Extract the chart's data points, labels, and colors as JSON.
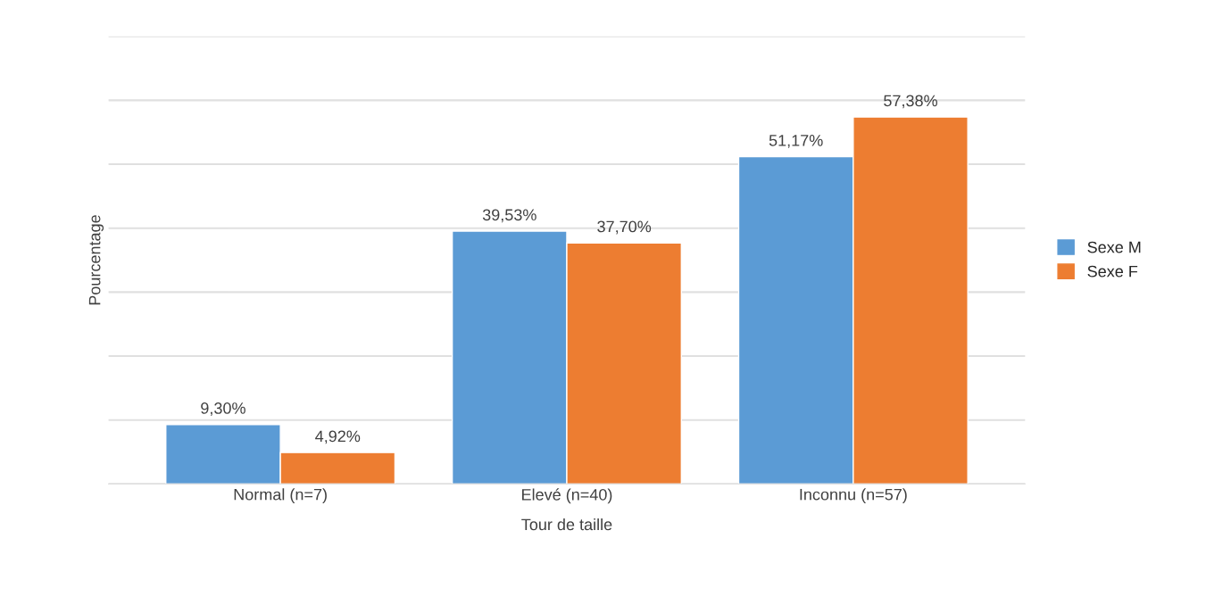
{
  "chart_data": {
    "type": "bar",
    "xlabel": "Tour de taille",
    "ylabel": "Pourcentage",
    "categories": [
      "Normal (n=7)",
      "Elevé (n=40)",
      "Inconnu (n=57)"
    ],
    "series": [
      {
        "name": "Sexe M",
        "color": "#5b9bd5",
        "values": [
          9.3,
          39.53,
          51.17
        ],
        "value_labels": [
          "9,30%",
          "39,53%",
          "51,17%"
        ]
      },
      {
        "name": "Sexe F",
        "color": "#ed7d31",
        "values": [
          4.92,
          37.7,
          57.38
        ],
        "value_labels": [
          "4,92%",
          "37,70%",
          "57,38%"
        ]
      }
    ],
    "ylim": [
      0,
      70
    ],
    "yticks": [
      {
        "value": 0,
        "label": null
      },
      {
        "value": 10,
        "label": null
      },
      {
        "value": 20,
        "label": null
      },
      {
        "value": 30,
        "label": null
      },
      {
        "value": 40,
        "label": null
      },
      {
        "value": 50,
        "label": null
      },
      {
        "value": 60,
        "label": null
      },
      {
        "value": 70,
        "label": null
      }
    ],
    "grid": "y",
    "legend": "right",
    "tick_labels": "x"
  }
}
